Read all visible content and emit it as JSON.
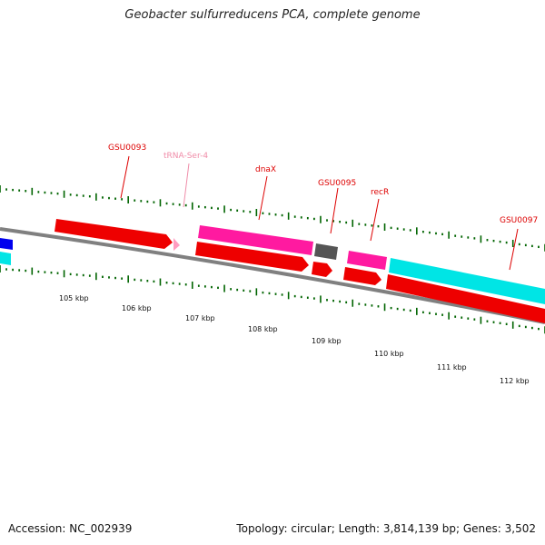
{
  "title": "Geobacter sulfurreducens PCA, complete genome",
  "accession": "Accession: NC_002939",
  "stats": "Topology: circular; Length: 3,814,139 bp; Genes: 3,502",
  "colors": {
    "backbone": "#808080",
    "cds_red": "#ee0000",
    "magenta": "#ff1aa0",
    "cyan": "#00e5e5",
    "blue": "#0000ee",
    "gray_gene": "#555555",
    "trna": "#ff9cc0",
    "tick": "#006400",
    "label_red": "#dd0000"
  },
  "scale_labels": [
    "105 kbp",
    "106 kbp",
    "107 kbp",
    "108 kbp",
    "109 kbp",
    "110 kbp",
    "111 kbp",
    "112 kbp"
  ],
  "gene_labels": [
    "GSU0093",
    "tRNA-Ser-4",
    "dnaX",
    "GSU0095",
    "recR",
    "GSU0097"
  ]
}
